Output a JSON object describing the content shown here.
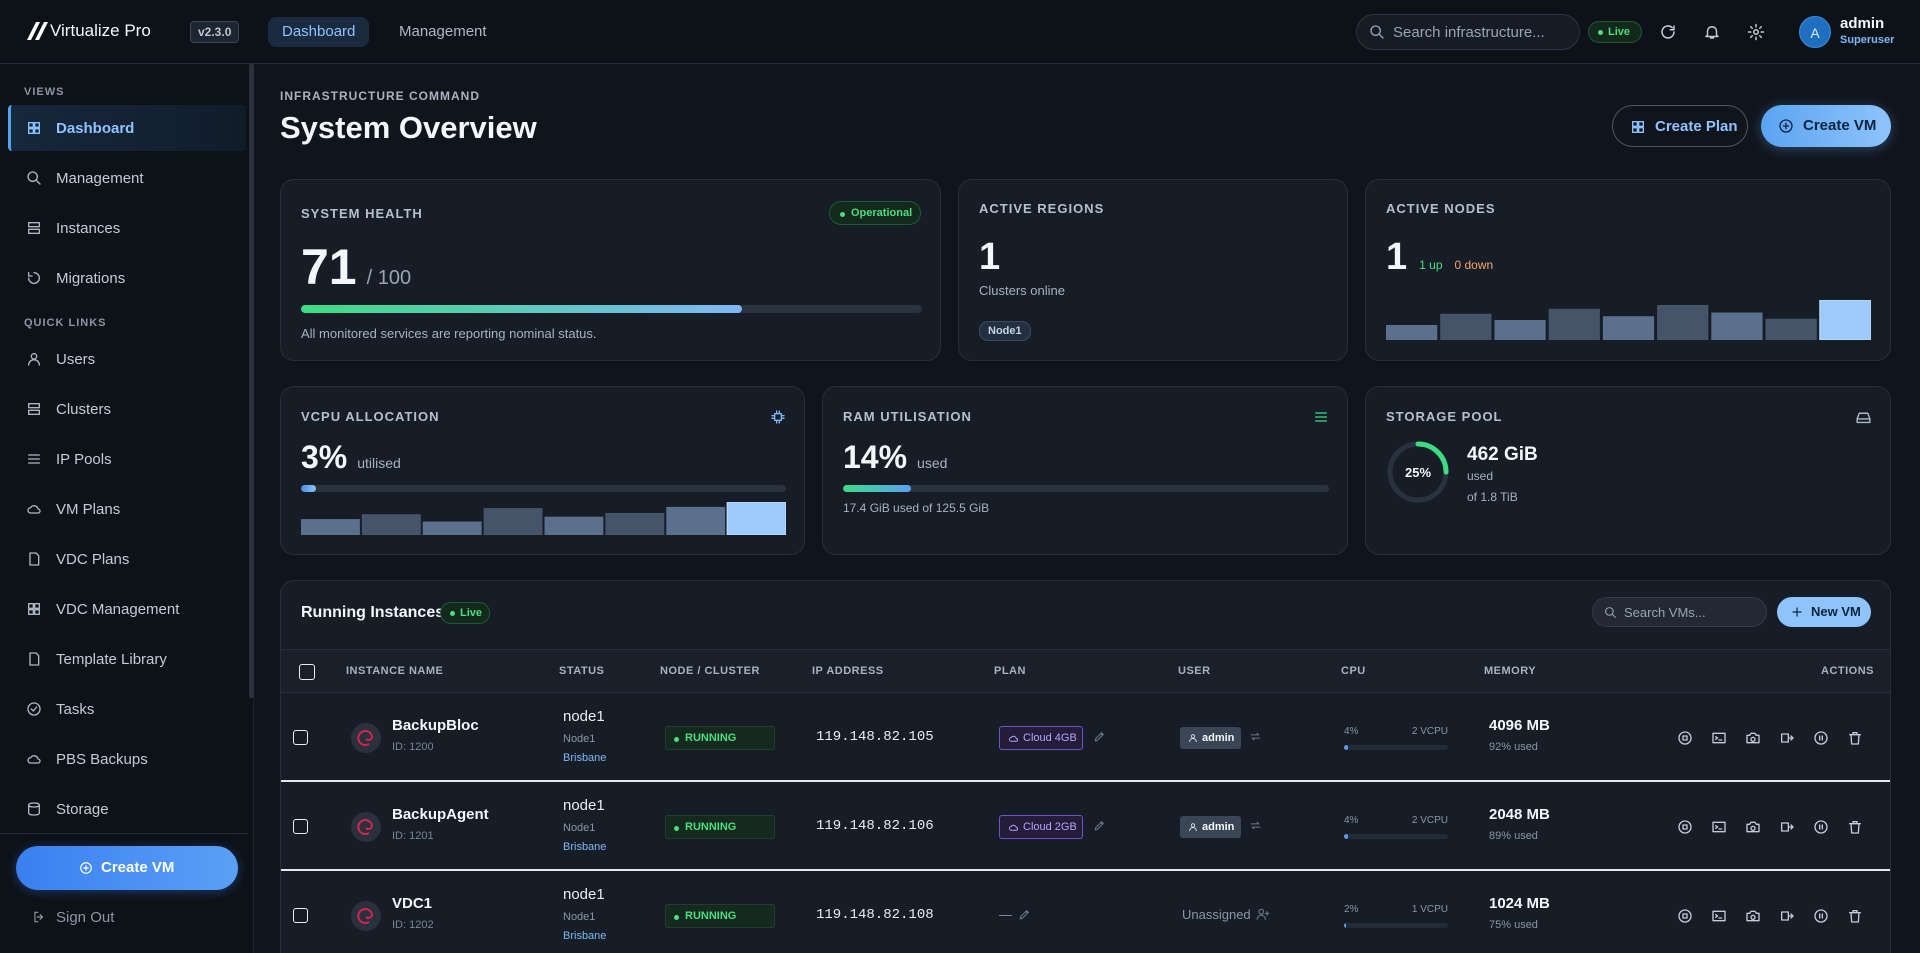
{
  "brand": {
    "name": "Virtualize Pro",
    "version": "v2.3.0"
  },
  "top_nav": {
    "tabs": [
      "Dashboard",
      "Management"
    ],
    "active": 0
  },
  "search": {
    "placeholder": "Search infrastructure..."
  },
  "status_badge": "Live",
  "user": {
    "initial": "A",
    "name": "admin",
    "role": "Superuser"
  },
  "sidebar": {
    "sections": [
      {
        "title": "VIEWS",
        "items": [
          "Dashboard",
          "Management",
          "Instances",
          "Migrations"
        ]
      },
      {
        "title": "QUICK LINKS",
        "items": [
          "Users",
          "Clusters",
          "IP Pools",
          "VM Plans",
          "VDC Plans",
          "VDC Management",
          "Template Library",
          "Tasks",
          "PBS Backups",
          "Storage"
        ]
      }
    ],
    "active": {
      "section": 0,
      "item": 0
    },
    "create_button": "Create VM",
    "sign_out": "Sign Out"
  },
  "header": {
    "eyebrow": "INFRASTRUCTURE COMMAND",
    "title": "System Overview",
    "actions": [
      "Create Plan",
      "Create VM"
    ]
  },
  "cards": {
    "health": {
      "label": "SYSTEM HEALTH",
      "badge": "Operational",
      "value": 71,
      "max": {
        "value": 100,
        "label": "/ 100"
      },
      "note": "All monitored services are reporting nominal status."
    },
    "regions": {
      "label": "ACTIVE REGIONS",
      "value": 1,
      "sub": "Clusters online",
      "tag": "Node1"
    },
    "nodes": {
      "label": "ACTIVE NODES",
      "value": 1,
      "up": "1 up",
      "down": "0 down",
      "history": [
        12,
        21,
        16,
        25,
        19,
        28,
        22,
        17,
        32
      ]
    },
    "vcpu": {
      "label": "VCPU ALLOCATION",
      "percent": {
        "value": 3,
        "label": "3%"
      },
      "unit": "utilised",
      "history": [
        13,
        17,
        11,
        22,
        15,
        18,
        23,
        27
      ]
    },
    "ram": {
      "label": "RAM UTILISATION",
      "percent": {
        "value": 14,
        "label": "14%"
      },
      "unit": "used",
      "detail": "17.4 GiB used of 125.5 GiB"
    },
    "storage": {
      "label": "STORAGE POOL",
      "percent": {
        "value": 25,
        "label": "25%"
      },
      "used": "462 GiB",
      "used_label": "used",
      "total": "of 1.8 TiB"
    }
  },
  "table": {
    "title": "Running Instances",
    "badge": "Live",
    "search": "Search VMs...",
    "new_button": "New VM",
    "columns": [
      "INSTANCE NAME",
      "STATUS",
      "NODE / CLUSTER",
      "IP ADDRESS",
      "PLAN",
      "USER",
      "CPU",
      "MEMORY",
      "ACTIONS"
    ],
    "rows": [
      {
        "name": "BackupBloc",
        "id": "ID: 1200",
        "node": "node1",
        "node_label": "Node1",
        "location": "Brisbane",
        "status": "RUNNING",
        "ip": "119.148.82.105",
        "plan": "Cloud 4GB",
        "user": "admin",
        "assigned": true,
        "cpu": {
          "value": 4,
          "label": "4%"
        },
        "vcpu": "2 VCPU",
        "memory": "4096 MB",
        "memory_used": "92% used"
      },
      {
        "name": "BackupAgent",
        "id": "ID: 1201",
        "node": "node1",
        "node_label": "Node1",
        "location": "Brisbane",
        "status": "RUNNING",
        "ip": "119.148.82.106",
        "plan": "Cloud 2GB",
        "user": "admin",
        "assigned": true,
        "cpu": {
          "value": 4,
          "label": "4%"
        },
        "vcpu": "2 VCPU",
        "memory": "2048 MB",
        "memory_used": "89% used"
      },
      {
        "name": "VDC1",
        "id": "ID: 1202",
        "node": "node1",
        "node_label": "Node1",
        "location": "Brisbane",
        "status": "RUNNING",
        "ip": "119.148.82.108",
        "plan": "—",
        "user": "Unassigned",
        "assigned": false,
        "cpu": {
          "value": 2,
          "label": "2%"
        },
        "vcpu": "1 VCPU",
        "memory": "1024 MB",
        "memory_used": "75% used"
      }
    ]
  }
}
